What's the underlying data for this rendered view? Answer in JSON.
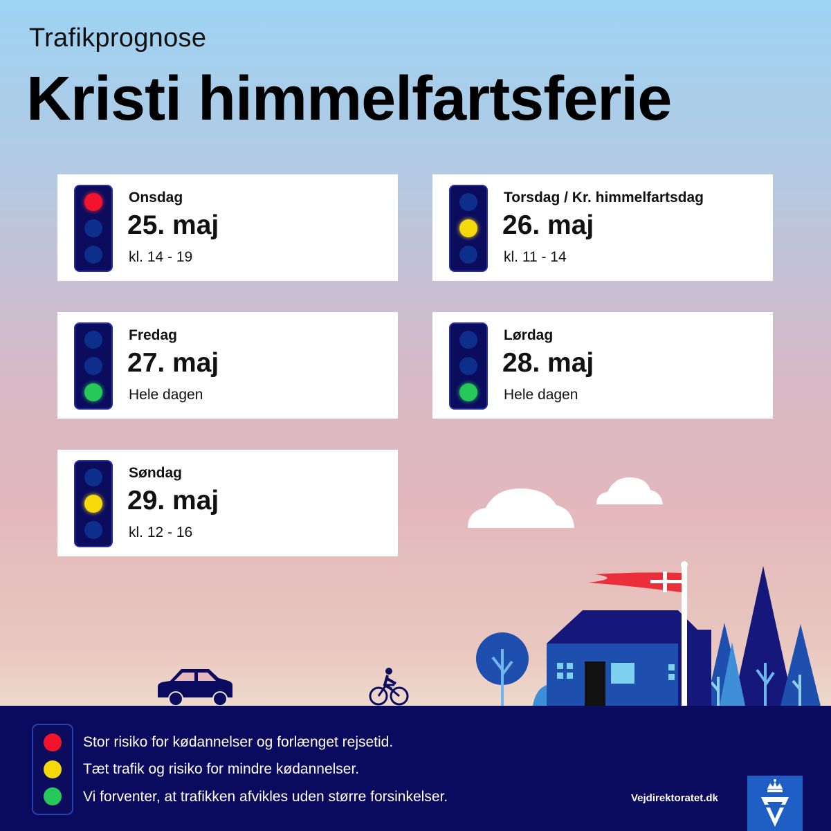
{
  "header": {
    "subtitle": "Trafikprognose",
    "title": "Kristi himmelfartsferie"
  },
  "days": [
    {
      "day": "Onsdag",
      "date": "25. maj",
      "time": "kl. 14 - 19",
      "light": "red"
    },
    {
      "day": "Torsdag / Kr. himmelfartsdag",
      "date": "26. maj",
      "time": "kl. 11 - 14",
      "light": "yellow"
    },
    {
      "day": "Fredag",
      "date": "27. maj",
      "time": "Hele dagen",
      "light": "green"
    },
    {
      "day": "Lørdag",
      "date": "28. maj",
      "time": "Hele dagen",
      "light": "green"
    },
    {
      "day": "Søndag",
      "date": "29. maj",
      "time": "kl. 12 - 16",
      "light": "yellow"
    }
  ],
  "legend": [
    {
      "color": "#f2142b",
      "text": "Stor risiko for kødannelser og forlænget rejsetid."
    },
    {
      "color": "#f6d90a",
      "text": "Tæt trafik og risiko for mindre kødannelser."
    },
    {
      "color": "#28c75a",
      "text": "Vi forventer, at trafikken afvikles uden større forsinkelser."
    }
  ],
  "footer": {
    "website": "Vejdirektoratet.dk"
  },
  "colors": {
    "navy": "#0a0b5e",
    "red": "#f2142b",
    "yellow": "#f6d90a",
    "green": "#28c75a",
    "logo_blue": "#1f5ec4"
  },
  "icons": [
    "traffic-light-icon",
    "car-icon",
    "bicycle-icon",
    "house-icon",
    "danish-flag-icon",
    "tree-icon",
    "cloud-icon",
    "crown-logo-icon"
  ]
}
